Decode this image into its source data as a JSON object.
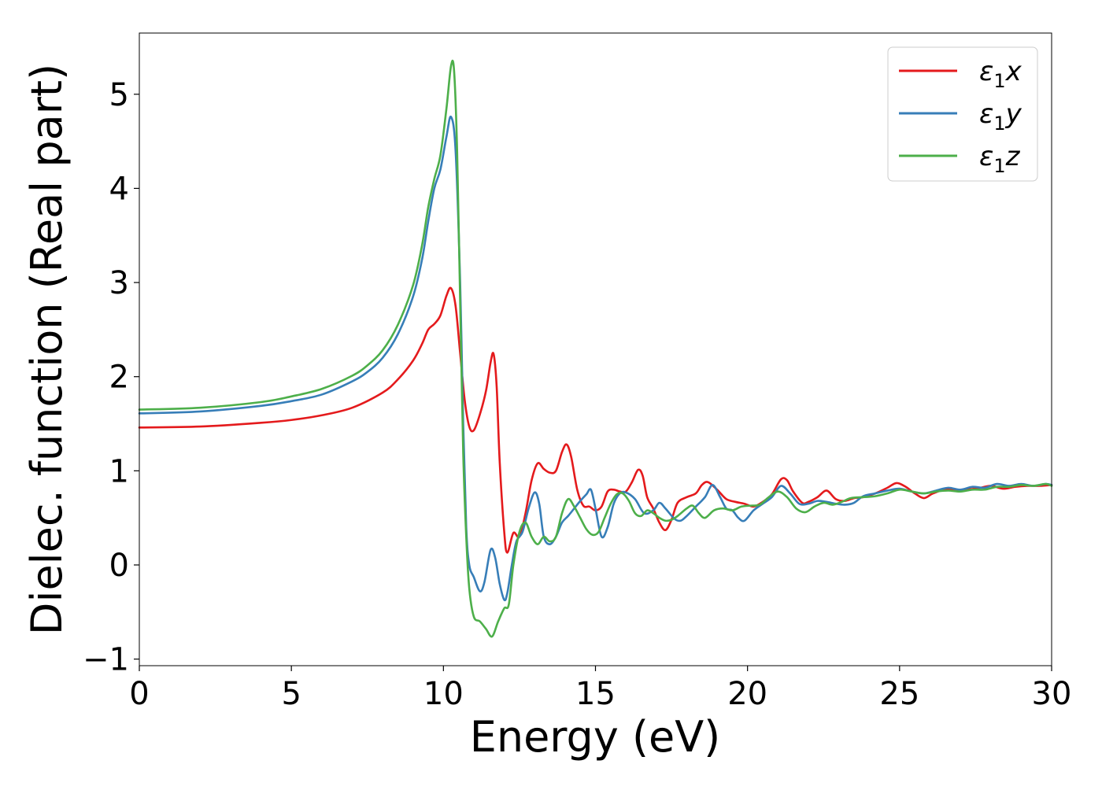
{
  "chart_data": {
    "type": "line",
    "title": "",
    "xlabel": "Energy (eV)",
    "ylabel": "Dielec. function (Real part)",
    "xlim": [
      0,
      30
    ],
    "ylim": [
      -1.07,
      5.65
    ],
    "xticks": [
      0,
      5,
      10,
      15,
      20,
      25,
      30
    ],
    "xtick_labels": [
      "0",
      "5",
      "10",
      "15",
      "20",
      "25",
      "30"
    ],
    "yticks": [
      -1,
      0,
      1,
      2,
      3,
      4,
      5
    ],
    "ytick_labels": [
      "−1",
      "0",
      "1",
      "2",
      "3",
      "4",
      "5"
    ],
    "grid": false,
    "legend_position": "top-right",
    "series": [
      {
        "name": "ε₁x",
        "legend": {
          "base": "ε",
          "sub": "1",
          "var": "x"
        },
        "color": "#e41a1c",
        "points": [
          [
            0,
            1.46
          ],
          [
            2,
            1.47
          ],
          [
            4,
            1.51
          ],
          [
            5,
            1.54
          ],
          [
            6,
            1.59
          ],
          [
            7,
            1.67
          ],
          [
            8,
            1.83
          ],
          [
            8.5,
            1.97
          ],
          [
            9,
            2.17
          ],
          [
            9.3,
            2.35
          ],
          [
            9.5,
            2.5
          ],
          [
            9.7,
            2.56
          ],
          [
            9.9,
            2.65
          ],
          [
            10.1,
            2.86
          ],
          [
            10.25,
            2.94
          ],
          [
            10.4,
            2.75
          ],
          [
            10.55,
            2.25
          ],
          [
            10.7,
            1.75
          ],
          [
            10.85,
            1.47
          ],
          [
            11,
            1.43
          ],
          [
            11.2,
            1.6
          ],
          [
            11.4,
            1.85
          ],
          [
            11.55,
            2.15
          ],
          [
            11.65,
            2.24
          ],
          [
            11.75,
            1.9
          ],
          [
            11.85,
            1.1
          ],
          [
            12,
            0.35
          ],
          [
            12.1,
            0.13
          ],
          [
            12.3,
            0.34
          ],
          [
            12.5,
            0.3
          ],
          [
            12.7,
            0.55
          ],
          [
            12.9,
            0.9
          ],
          [
            13.1,
            1.08
          ],
          [
            13.3,
            1.02
          ],
          [
            13.5,
            0.98
          ],
          [
            13.7,
            1.0
          ],
          [
            13.9,
            1.2
          ],
          [
            14.05,
            1.28
          ],
          [
            14.2,
            1.15
          ],
          [
            14.4,
            0.8
          ],
          [
            14.6,
            0.63
          ],
          [
            14.8,
            0.62
          ],
          [
            15,
            0.58
          ],
          [
            15.2,
            0.62
          ],
          [
            15.4,
            0.78
          ],
          [
            15.6,
            0.8
          ],
          [
            15.8,
            0.78
          ],
          [
            16,
            0.78
          ],
          [
            16.2,
            0.88
          ],
          [
            16.4,
            1.01
          ],
          [
            16.55,
            0.95
          ],
          [
            16.7,
            0.72
          ],
          [
            16.9,
            0.6
          ],
          [
            17.1,
            0.45
          ],
          [
            17.3,
            0.37
          ],
          [
            17.5,
            0.48
          ],
          [
            17.7,
            0.66
          ],
          [
            18,
            0.72
          ],
          [
            18.3,
            0.76
          ],
          [
            18.5,
            0.85
          ],
          [
            18.7,
            0.88
          ],
          [
            19,
            0.8
          ],
          [
            19.3,
            0.7
          ],
          [
            19.6,
            0.67
          ],
          [
            19.9,
            0.65
          ],
          [
            20.2,
            0.62
          ],
          [
            20.5,
            0.67
          ],
          [
            20.8,
            0.75
          ],
          [
            21.1,
            0.91
          ],
          [
            21.3,
            0.9
          ],
          [
            21.5,
            0.78
          ],
          [
            21.8,
            0.66
          ],
          [
            22,
            0.67
          ],
          [
            22.3,
            0.72
          ],
          [
            22.6,
            0.79
          ],
          [
            22.9,
            0.7
          ],
          [
            23.2,
            0.68
          ],
          [
            23.5,
            0.71
          ],
          [
            23.8,
            0.72
          ],
          [
            24.2,
            0.76
          ],
          [
            24.6,
            0.82
          ],
          [
            24.9,
            0.87
          ],
          [
            25.2,
            0.83
          ],
          [
            25.5,
            0.76
          ],
          [
            25.8,
            0.71
          ],
          [
            26.1,
            0.76
          ],
          [
            26.5,
            0.8
          ],
          [
            27,
            0.8
          ],
          [
            27.5,
            0.81
          ],
          [
            28,
            0.84
          ],
          [
            28.4,
            0.81
          ],
          [
            28.8,
            0.83
          ],
          [
            29.2,
            0.84
          ],
          [
            29.6,
            0.84
          ],
          [
            30,
            0.85
          ]
        ]
      },
      {
        "name": "ε₁y",
        "legend": {
          "base": "ε",
          "sub": "1",
          "var": "y"
        },
        "color": "#377eb8",
        "points": [
          [
            0,
            1.61
          ],
          [
            2,
            1.63
          ],
          [
            4,
            1.69
          ],
          [
            5,
            1.74
          ],
          [
            6,
            1.81
          ],
          [
            7,
            1.95
          ],
          [
            7.5,
            2.05
          ],
          [
            8,
            2.2
          ],
          [
            8.5,
            2.45
          ],
          [
            9,
            2.85
          ],
          [
            9.3,
            3.25
          ],
          [
            9.5,
            3.65
          ],
          [
            9.7,
            4.0
          ],
          [
            9.9,
            4.2
          ],
          [
            10.1,
            4.55
          ],
          [
            10.25,
            4.76
          ],
          [
            10.4,
            4.4
          ],
          [
            10.55,
            3.0
          ],
          [
            10.65,
            1.5
          ],
          [
            10.75,
            0.4
          ],
          [
            10.85,
            0.0
          ],
          [
            11,
            -0.13
          ],
          [
            11.2,
            -0.28
          ],
          [
            11.35,
            -0.18
          ],
          [
            11.55,
            0.16
          ],
          [
            11.7,
            0.08
          ],
          [
            11.85,
            -0.2
          ],
          [
            12,
            -0.37
          ],
          [
            12.1,
            -0.3
          ],
          [
            12.25,
            0.0
          ],
          [
            12.4,
            0.25
          ],
          [
            12.6,
            0.35
          ],
          [
            12.8,
            0.6
          ],
          [
            13,
            0.77
          ],
          [
            13.15,
            0.65
          ],
          [
            13.3,
            0.3
          ],
          [
            13.5,
            0.22
          ],
          [
            13.7,
            0.3
          ],
          [
            13.9,
            0.45
          ],
          [
            14.1,
            0.52
          ],
          [
            14.3,
            0.6
          ],
          [
            14.5,
            0.68
          ],
          [
            14.7,
            0.75
          ],
          [
            14.85,
            0.8
          ],
          [
            15,
            0.6
          ],
          [
            15.2,
            0.3
          ],
          [
            15.4,
            0.4
          ],
          [
            15.6,
            0.65
          ],
          [
            15.8,
            0.76
          ],
          [
            16,
            0.77
          ],
          [
            16.3,
            0.7
          ],
          [
            16.6,
            0.55
          ],
          [
            16.9,
            0.58
          ],
          [
            17.1,
            0.66
          ],
          [
            17.3,
            0.6
          ],
          [
            17.6,
            0.49
          ],
          [
            17.8,
            0.47
          ],
          [
            18,
            0.52
          ],
          [
            18.3,
            0.62
          ],
          [
            18.6,
            0.72
          ],
          [
            18.85,
            0.85
          ],
          [
            19.1,
            0.72
          ],
          [
            19.3,
            0.6
          ],
          [
            19.5,
            0.58
          ],
          [
            19.7,
            0.5
          ],
          [
            19.9,
            0.47
          ],
          [
            20.2,
            0.58
          ],
          [
            20.5,
            0.65
          ],
          [
            20.8,
            0.72
          ],
          [
            21.1,
            0.84
          ],
          [
            21.4,
            0.76
          ],
          [
            21.7,
            0.65
          ],
          [
            22,
            0.65
          ],
          [
            22.3,
            0.68
          ],
          [
            22.6,
            0.67
          ],
          [
            22.9,
            0.65
          ],
          [
            23.2,
            0.64
          ],
          [
            23.5,
            0.66
          ],
          [
            23.8,
            0.73
          ],
          [
            24.2,
            0.76
          ],
          [
            24.6,
            0.79
          ],
          [
            25,
            0.81
          ],
          [
            25.4,
            0.78
          ],
          [
            25.8,
            0.76
          ],
          [
            26.2,
            0.79
          ],
          [
            26.6,
            0.82
          ],
          [
            27,
            0.8
          ],
          [
            27.4,
            0.83
          ],
          [
            27.8,
            0.82
          ],
          [
            28.2,
            0.86
          ],
          [
            28.6,
            0.84
          ],
          [
            29,
            0.86
          ],
          [
            29.4,
            0.84
          ],
          [
            29.8,
            0.86
          ],
          [
            30,
            0.85
          ]
        ]
      },
      {
        "name": "ε₁z",
        "legend": {
          "base": "ε",
          "sub": "1",
          "var": "z"
        },
        "color": "#4daf4a",
        "points": [
          [
            0,
            1.65
          ],
          [
            2,
            1.67
          ],
          [
            4,
            1.73
          ],
          [
            5,
            1.79
          ],
          [
            6,
            1.87
          ],
          [
            7,
            2.01
          ],
          [
            7.5,
            2.12
          ],
          [
            8,
            2.28
          ],
          [
            8.5,
            2.55
          ],
          [
            9,
            2.97
          ],
          [
            9.3,
            3.4
          ],
          [
            9.5,
            3.8
          ],
          [
            9.7,
            4.1
          ],
          [
            9.9,
            4.35
          ],
          [
            10.1,
            4.85
          ],
          [
            10.25,
            5.3
          ],
          [
            10.35,
            5.25
          ],
          [
            10.45,
            4.4
          ],
          [
            10.55,
            2.8
          ],
          [
            10.65,
            1.2
          ],
          [
            10.75,
            0.3
          ],
          [
            10.85,
            -0.25
          ],
          [
            11,
            -0.55
          ],
          [
            11.2,
            -0.6
          ],
          [
            11.4,
            -0.68
          ],
          [
            11.6,
            -0.76
          ],
          [
            11.8,
            -0.6
          ],
          [
            12,
            -0.46
          ],
          [
            12.15,
            -0.42
          ],
          [
            12.3,
            0.0
          ],
          [
            12.5,
            0.35
          ],
          [
            12.7,
            0.45
          ],
          [
            12.9,
            0.3
          ],
          [
            13.1,
            0.22
          ],
          [
            13.3,
            0.3
          ],
          [
            13.5,
            0.25
          ],
          [
            13.7,
            0.3
          ],
          [
            13.9,
            0.55
          ],
          [
            14.1,
            0.7
          ],
          [
            14.3,
            0.62
          ],
          [
            14.5,
            0.5
          ],
          [
            14.7,
            0.38
          ],
          [
            14.9,
            0.32
          ],
          [
            15.1,
            0.35
          ],
          [
            15.3,
            0.5
          ],
          [
            15.5,
            0.65
          ],
          [
            15.7,
            0.75
          ],
          [
            15.9,
            0.76
          ],
          [
            16.1,
            0.68
          ],
          [
            16.3,
            0.55
          ],
          [
            16.5,
            0.52
          ],
          [
            16.7,
            0.58
          ],
          [
            16.9,
            0.55
          ],
          [
            17.1,
            0.5
          ],
          [
            17.3,
            0.47
          ],
          [
            17.5,
            0.48
          ],
          [
            17.7,
            0.52
          ],
          [
            18,
            0.6
          ],
          [
            18.2,
            0.63
          ],
          [
            18.4,
            0.55
          ],
          [
            18.6,
            0.5
          ],
          [
            18.9,
            0.58
          ],
          [
            19.2,
            0.6
          ],
          [
            19.5,
            0.58
          ],
          [
            19.8,
            0.62
          ],
          [
            20.1,
            0.63
          ],
          [
            20.4,
            0.64
          ],
          [
            20.7,
            0.72
          ],
          [
            21,
            0.78
          ],
          [
            21.3,
            0.72
          ],
          [
            21.6,
            0.6
          ],
          [
            21.9,
            0.56
          ],
          [
            22.2,
            0.62
          ],
          [
            22.5,
            0.66
          ],
          [
            22.8,
            0.64
          ],
          [
            23.1,
            0.67
          ],
          [
            23.4,
            0.71
          ],
          [
            23.8,
            0.72
          ],
          [
            24.2,
            0.73
          ],
          [
            24.6,
            0.76
          ],
          [
            25,
            0.8
          ],
          [
            25.4,
            0.78
          ],
          [
            25.8,
            0.76
          ],
          [
            26.2,
            0.78
          ],
          [
            26.6,
            0.79
          ],
          [
            27,
            0.78
          ],
          [
            27.4,
            0.8
          ],
          [
            27.8,
            0.8
          ],
          [
            28.2,
            0.83
          ],
          [
            28.6,
            0.83
          ],
          [
            29,
            0.85
          ],
          [
            29.4,
            0.84
          ],
          [
            29.8,
            0.86
          ],
          [
            30,
            0.84
          ]
        ]
      }
    ]
  }
}
